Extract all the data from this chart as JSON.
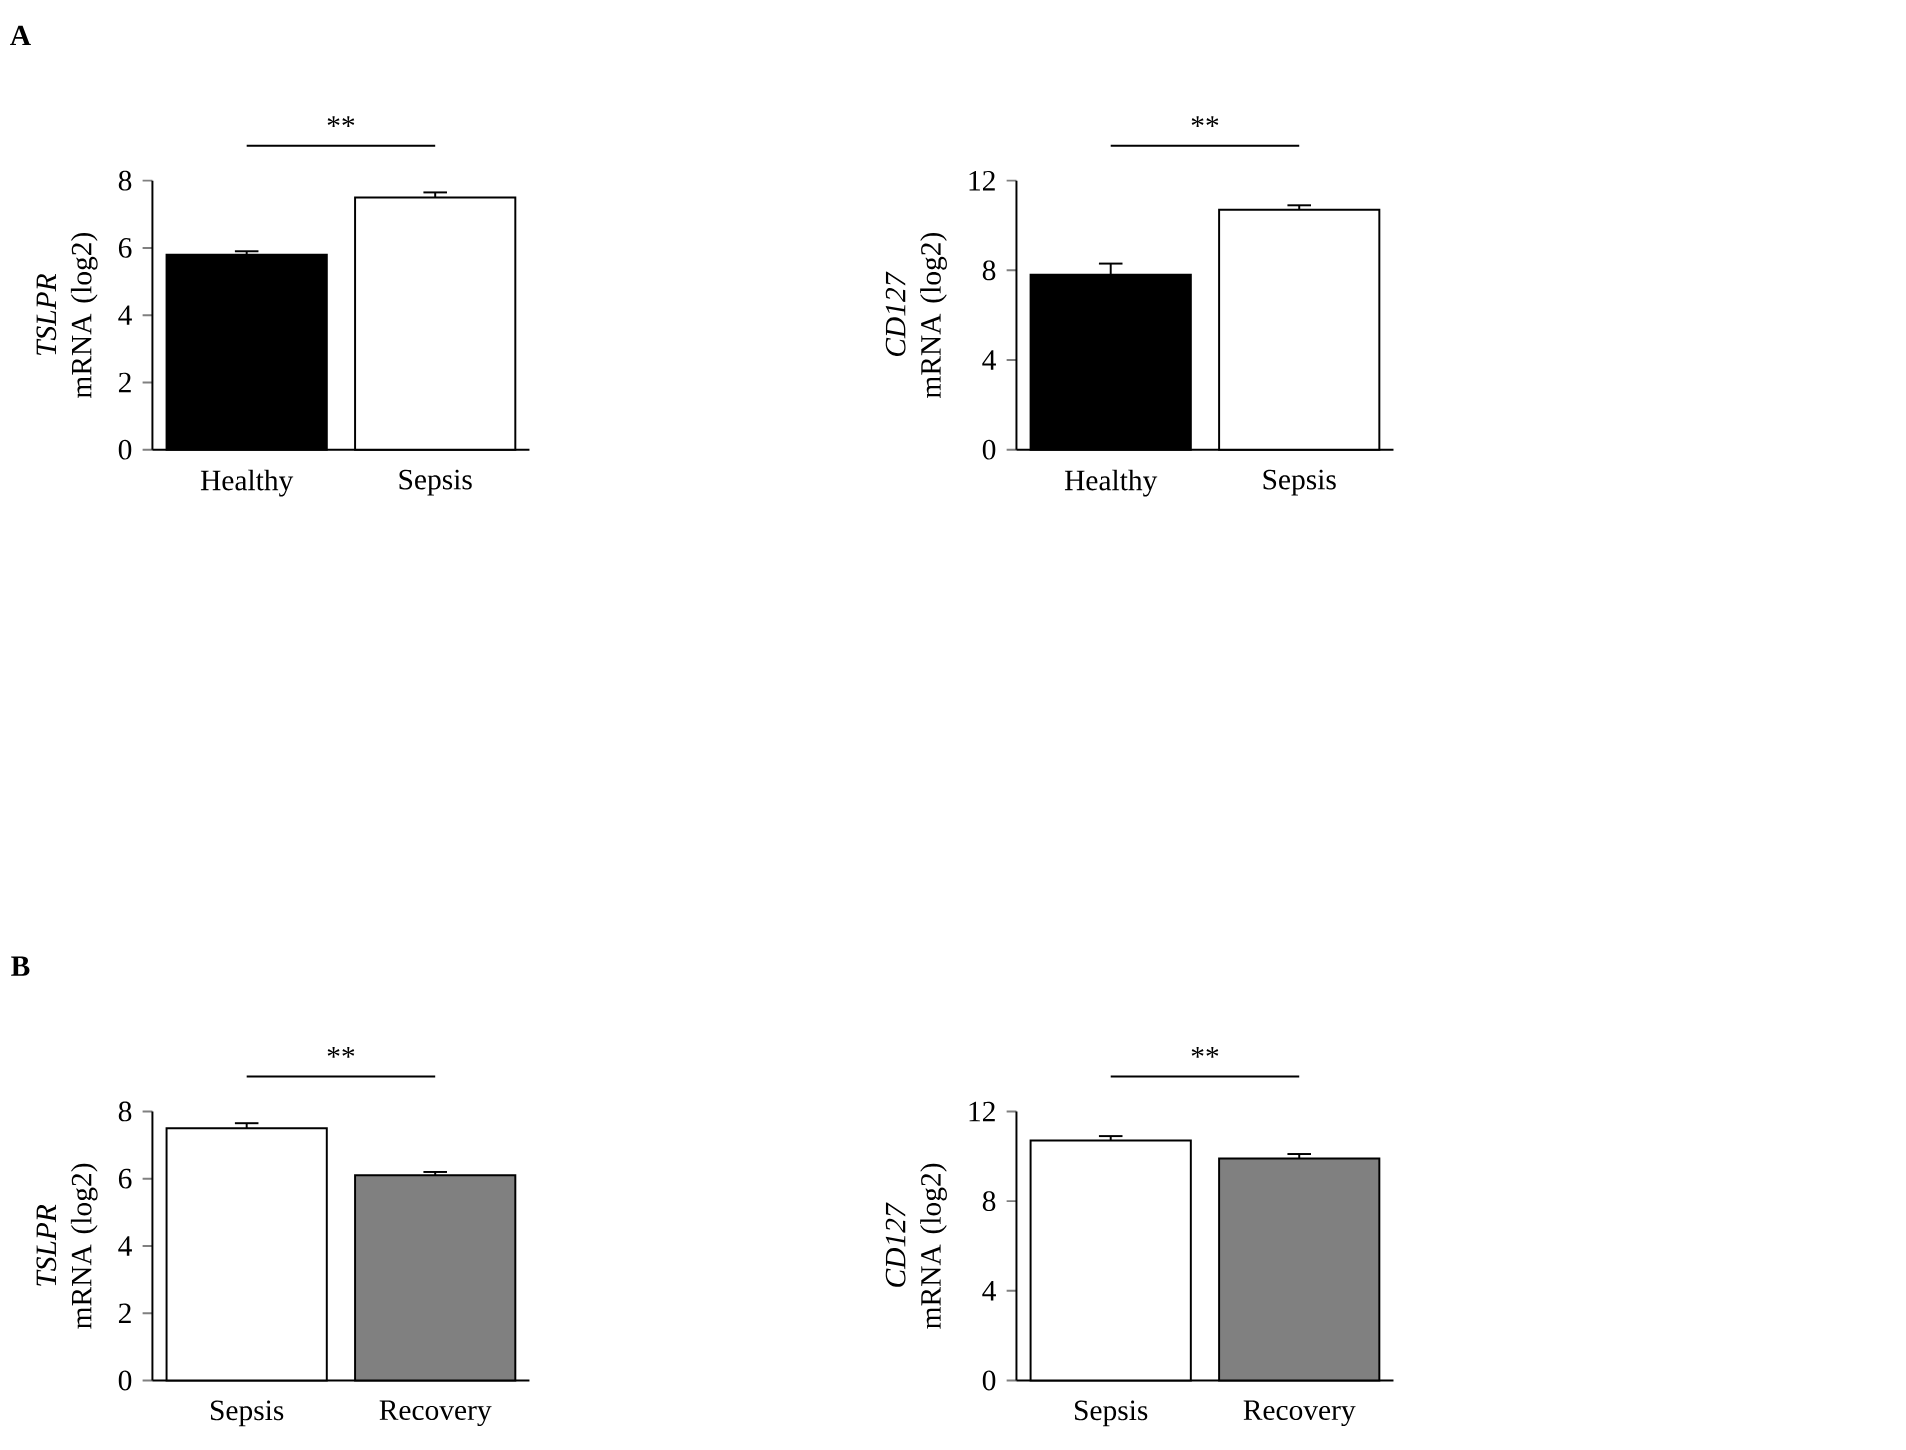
{
  "chart_data": [
    {
      "type": "bar",
      "ylabel": "*TSLPR* mRNA (log2)",
      "categories": [
        "Healthy",
        "Sepsis"
      ],
      "values": [
        5.8,
        7.5
      ],
      "errors": [
        0.1,
        0.15
      ],
      "colors": [
        "#000000",
        "#ffffff"
      ],
      "ylim": [
        0,
        8
      ],
      "yticks": [
        0,
        2,
        4,
        6,
        8
      ],
      "annotations": [
        "A",
        "**"
      ]
    },
    {
      "type": "bar",
      "ylabel": "*CD127* mRNA (log2)",
      "categories": [
        "Healthy",
        "Sepsis"
      ],
      "values": [
        7.8,
        10.7
      ],
      "errors": [
        0.5,
        0.2
      ],
      "colors": [
        "#000000",
        "#ffffff"
      ],
      "ylim": [
        0,
        12
      ],
      "yticks": [
        0,
        4,
        8,
        12
      ],
      "annotations": [
        "**"
      ]
    },
    {
      "type": "bar",
      "ylabel": "*TSLPR* mRNA (log2)",
      "categories": [
        "Sepsis",
        "Recovery"
      ],
      "values": [
        7.5,
        6.1
      ],
      "errors": [
        0.15,
        0.1
      ],
      "colors": [
        "#ffffff",
        "#808080"
      ],
      "ylim": [
        0,
        8
      ],
      "yticks": [
        0,
        2,
        4,
        6,
        8
      ],
      "annotations": [
        "B",
        "**"
      ]
    },
    {
      "type": "bar",
      "ylabel": "*CD127* mRNA (log2)",
      "categories": [
        "Sepsis",
        "Recovery"
      ],
      "values": [
        10.7,
        9.9
      ],
      "errors": [
        0.2,
        0.2
      ],
      "colors": [
        "#ffffff",
        "#808080"
      ],
      "ylim": [
        0,
        12
      ],
      "yticks": [
        0,
        4,
        8,
        12
      ],
      "annotations": [
        "**"
      ]
    }
  ]
}
